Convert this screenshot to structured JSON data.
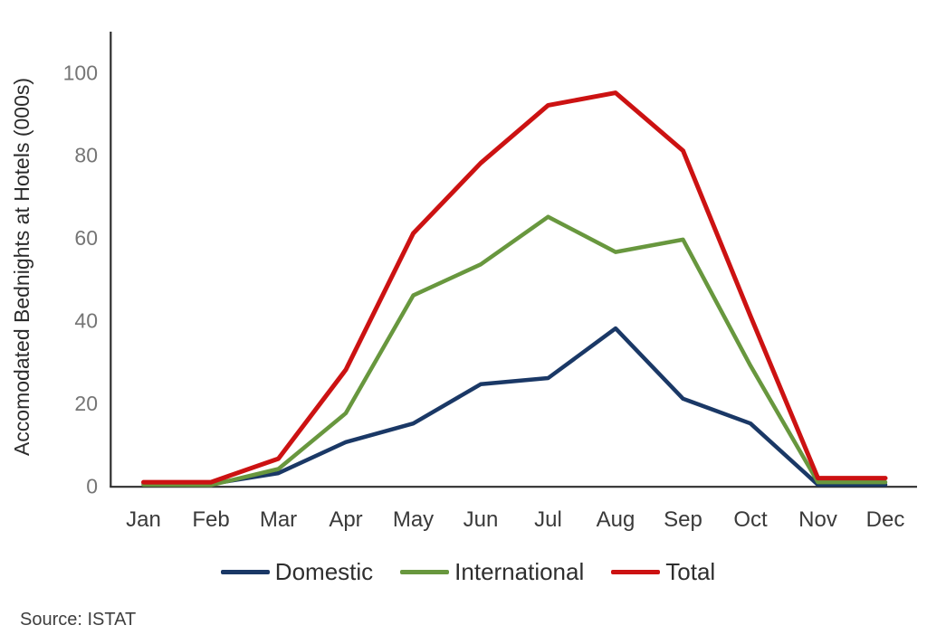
{
  "chart_data": {
    "type": "line",
    "title": "",
    "xlabel": "",
    "ylabel": "Accomodated Bednights at Hotels (000s)",
    "categories": [
      "Jan",
      "Feb",
      "Mar",
      "Apr",
      "May",
      "Jun",
      "Jul",
      "Aug",
      "Sep",
      "Oct",
      "Nov",
      "Dec"
    ],
    "y_ticks": [
      0,
      20,
      40,
      60,
      80,
      100
    ],
    "ylim": [
      0,
      110
    ],
    "grid": false,
    "legend_position": "bottom",
    "series": [
      {
        "name": "Domestic",
        "color": "#1A3866",
        "values": [
          0.4,
          0.4,
          3,
          10.5,
          15,
          24.5,
          26,
          38,
          21,
          15,
          0.2,
          0.2
        ]
      },
      {
        "name": "International",
        "color": "#68973E",
        "values": [
          0.2,
          0.1,
          4,
          17.5,
          46,
          53.5,
          65,
          56.5,
          59.5,
          29,
          0.8,
          0.8
        ]
      },
      {
        "name": "Total",
        "color": "#CC1212",
        "values": [
          0.8,
          0.8,
          6.5,
          28,
          61,
          78,
          92,
          95,
          81,
          41,
          1.8,
          1.8
        ]
      }
    ],
    "axis_color": "#2e2e2e",
    "tick_label_color": "#757575",
    "month_label_color": "#3a3a3a"
  },
  "legend": {
    "items": [
      "Domestic",
      "International",
      "Total"
    ]
  },
  "source": {
    "label": "Source: ISTAT"
  }
}
